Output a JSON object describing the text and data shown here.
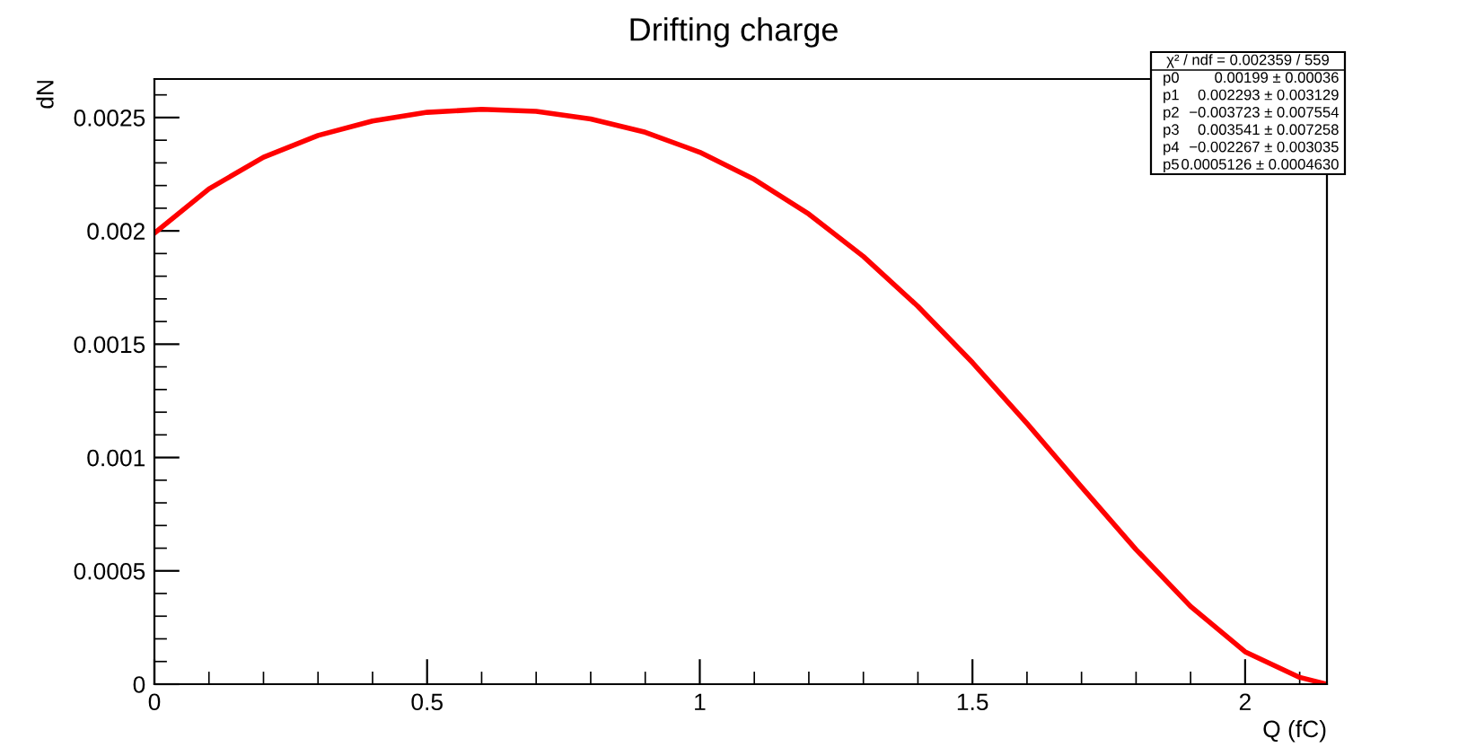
{
  "chart_data": {
    "type": "line",
    "title": "Drifting charge",
    "xlabel": "Q (fC)",
    "ylabel": "dN",
    "x": [
      0,
      0.1,
      0.2,
      0.3,
      0.4,
      0.5,
      0.6,
      0.7,
      0.8,
      0.9,
      1.0,
      1.1,
      1.2,
      1.3,
      1.4,
      1.5,
      1.6,
      1.7,
      1.8,
      1.9,
      2.0,
      2.1,
      2.15
    ],
    "series": [
      {
        "color": "#ff0000",
        "values": [
          0.00199,
          0.002185,
          0.002325,
          0.002421,
          0.002485,
          0.002523,
          0.002536,
          0.002527,
          0.002494,
          0.002435,
          0.002347,
          0.002227,
          0.002074,
          0.001887,
          0.001667,
          0.001419,
          0.00115,
          0.00087,
          0.000594,
          0.000343,
          0.000143,
          3e-05,
          0.0
        ]
      }
    ],
    "xlim": [
      0,
      2.15
    ],
    "ylim": [
      0,
      0.00267
    ],
    "xticks": [
      0,
      0.5,
      1,
      1.5,
      2
    ],
    "yticks": [
      0,
      0.0005,
      0.001,
      0.0015,
      0.002,
      0.0025
    ],
    "marker": "none",
    "line_style": "solid",
    "grid": false,
    "legend": false,
    "annotations": [
      "χ² / ndf = 0.002359 / 559",
      "p0",
      "0.00199 ± 0.00036",
      "p1",
      "0.002293 ± 0.003129",
      "p2",
      "−0.003723 ± 0.007554",
      "p3",
      "0.003541 ± 0.007258",
      "p4",
      "−0.002267 ± 0.003035",
      "p5",
      "0.0005126 ± 0.0004630"
    ]
  }
}
